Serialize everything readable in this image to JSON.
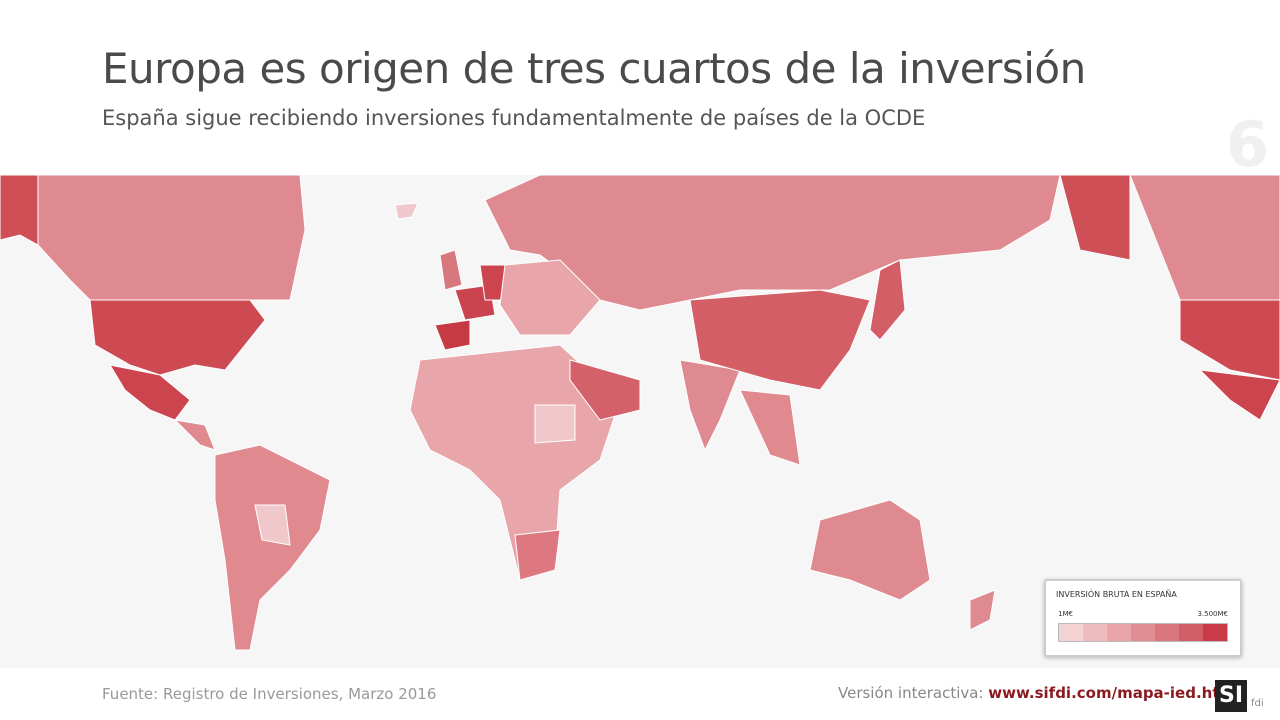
{
  "header": {
    "title": "Europa es origen de tres cuartos de la inversión",
    "subtitle": "España sigue recibiendo inversiones fundamentalmente de países de la OCDE",
    "page_number": "6"
  },
  "legend": {
    "title": "INVERSIÓN BRUTA EN ESPAÑA",
    "min_label": "1M€",
    "max_label": "3.500M€",
    "colors": [
      "#f3d2d4",
      "#eebcbf",
      "#e8a5aa",
      "#e08e94",
      "#d9777e",
      "#d25f68",
      "#c93c47"
    ]
  },
  "footer": {
    "source": "Fuente: Registro de Inversiones, Marzo 2016",
    "interactive_label": "Versión interactiva:",
    "link": "www.sifdi.com/mapa-ied.html",
    "logo_mark": "SI",
    "logo_text": "fdi"
  }
}
